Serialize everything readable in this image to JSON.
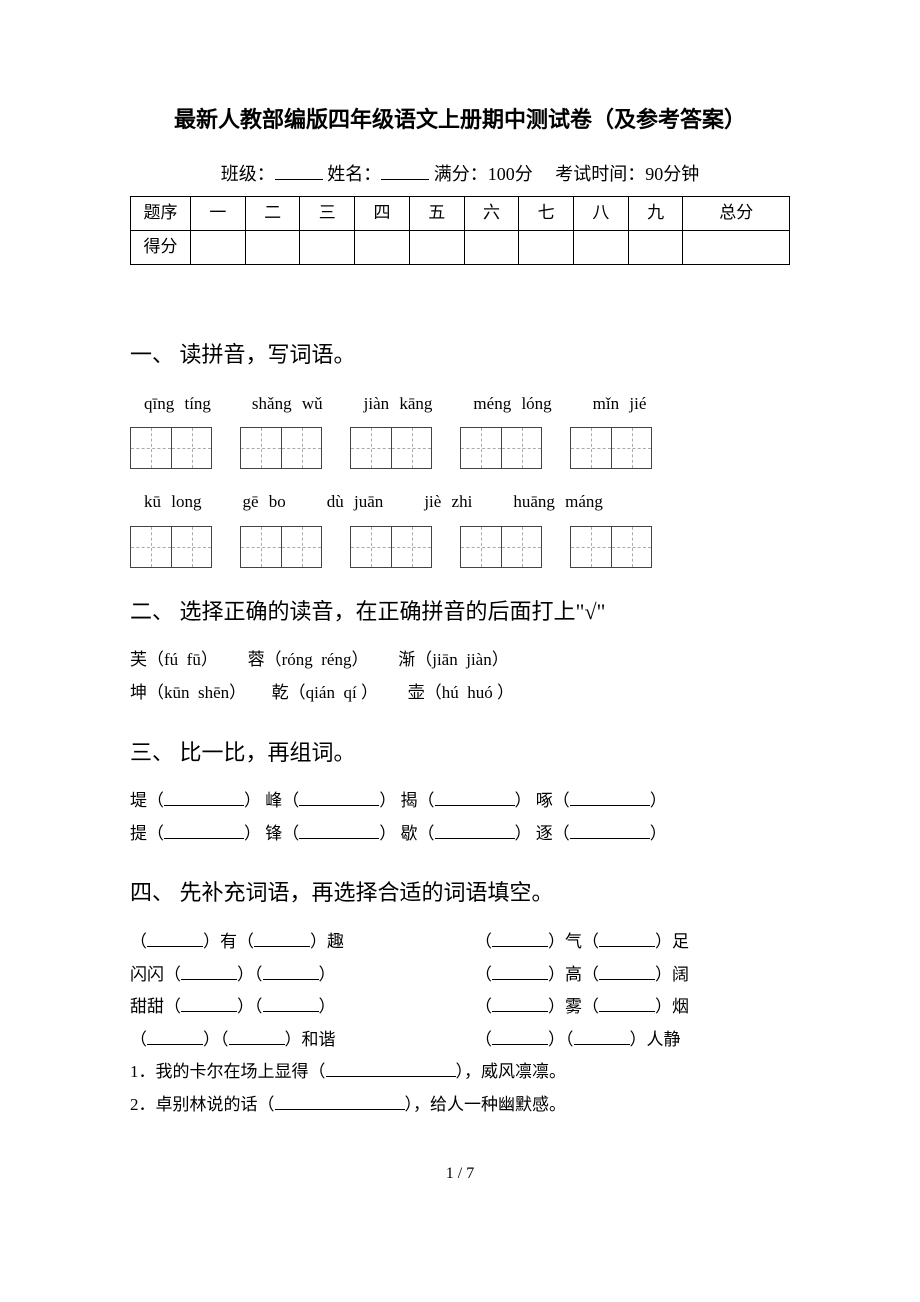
{
  "title": "最新人教部编版四年级语文上册期中测试卷（及参考答案）",
  "meta": {
    "class_label": "班级：",
    "name_label": "姓名：",
    "fullscore_label": "满分：",
    "fullscore_value": "100分",
    "time_label": "考试时间：",
    "time_value": "90分钟"
  },
  "score_table": {
    "row1_label": "题序",
    "cols": [
      "一",
      "二",
      "三",
      "四",
      "五",
      "六",
      "七",
      "八",
      "九",
      "总分"
    ],
    "row2_label": "得分"
  },
  "section1": {
    "heading": "一、 读拼音，写词语。",
    "pinyin_row1": [
      "qīng tíng",
      "shǎng wǔ",
      "jiàn kāng",
      "méng lóng",
      "mǐn jié"
    ],
    "pinyin_row2": [
      "kū long",
      "gē bo",
      "dù juān",
      "jiè zhi",
      "huāng máng"
    ]
  },
  "section2": {
    "heading": "二、 选择正确的读音，在正确拼音的后面打上\"√\"",
    "items": [
      {
        "char": "芙",
        "a": "fú",
        "b": "fū"
      },
      {
        "char": "蓉",
        "a": "róng",
        "b": "réng"
      },
      {
        "char": "渐",
        "a": "jiān",
        "b": "jiàn"
      },
      {
        "char": "坤",
        "a": "kūn",
        "b": "shēn"
      },
      {
        "char": "乾",
        "a": "qián",
        "b": "qí"
      },
      {
        "char": "壶",
        "a": "hú",
        "b": "huó"
      }
    ]
  },
  "section3": {
    "heading": "三、 比一比，再组词。",
    "pairs_row1": [
      "堤",
      "峰",
      "揭",
      "啄"
    ],
    "pairs_row2": [
      "提",
      "锋",
      "歇",
      "逐"
    ]
  },
  "section4": {
    "heading": "四、 先补充词语，再选择合适的词语填空。",
    "grid": [
      [
        {
          "prefix": "（",
          "mid": "）有（",
          "suffix": "）趣"
        },
        {
          "prefix": "（",
          "mid": "）气（",
          "suffix": "）足"
        }
      ],
      [
        {
          "prefix": "闪闪（",
          "mid": "）（",
          "suffix": "）"
        },
        {
          "prefix": "（",
          "mid": "）高（",
          "suffix": "）阔"
        }
      ],
      [
        {
          "prefix": "甜甜（",
          "mid": "）（",
          "suffix": "）"
        },
        {
          "prefix": "（",
          "mid": "）雾（",
          "suffix": "）烟"
        }
      ],
      [
        {
          "prefix": "（",
          "mid": "）（",
          "suffix": "）和谐"
        },
        {
          "prefix": "（",
          "mid": "）（",
          "suffix": "）人静"
        }
      ]
    ],
    "sentences": [
      {
        "num": "1．",
        "before": "我的卡尔在场上显得（",
        "after": "），威风凛凛。"
      },
      {
        "num": "2．",
        "before": "卓别林说的话（",
        "after": "），给人一种幽默感。"
      }
    ]
  },
  "page_num": "1 / 7"
}
